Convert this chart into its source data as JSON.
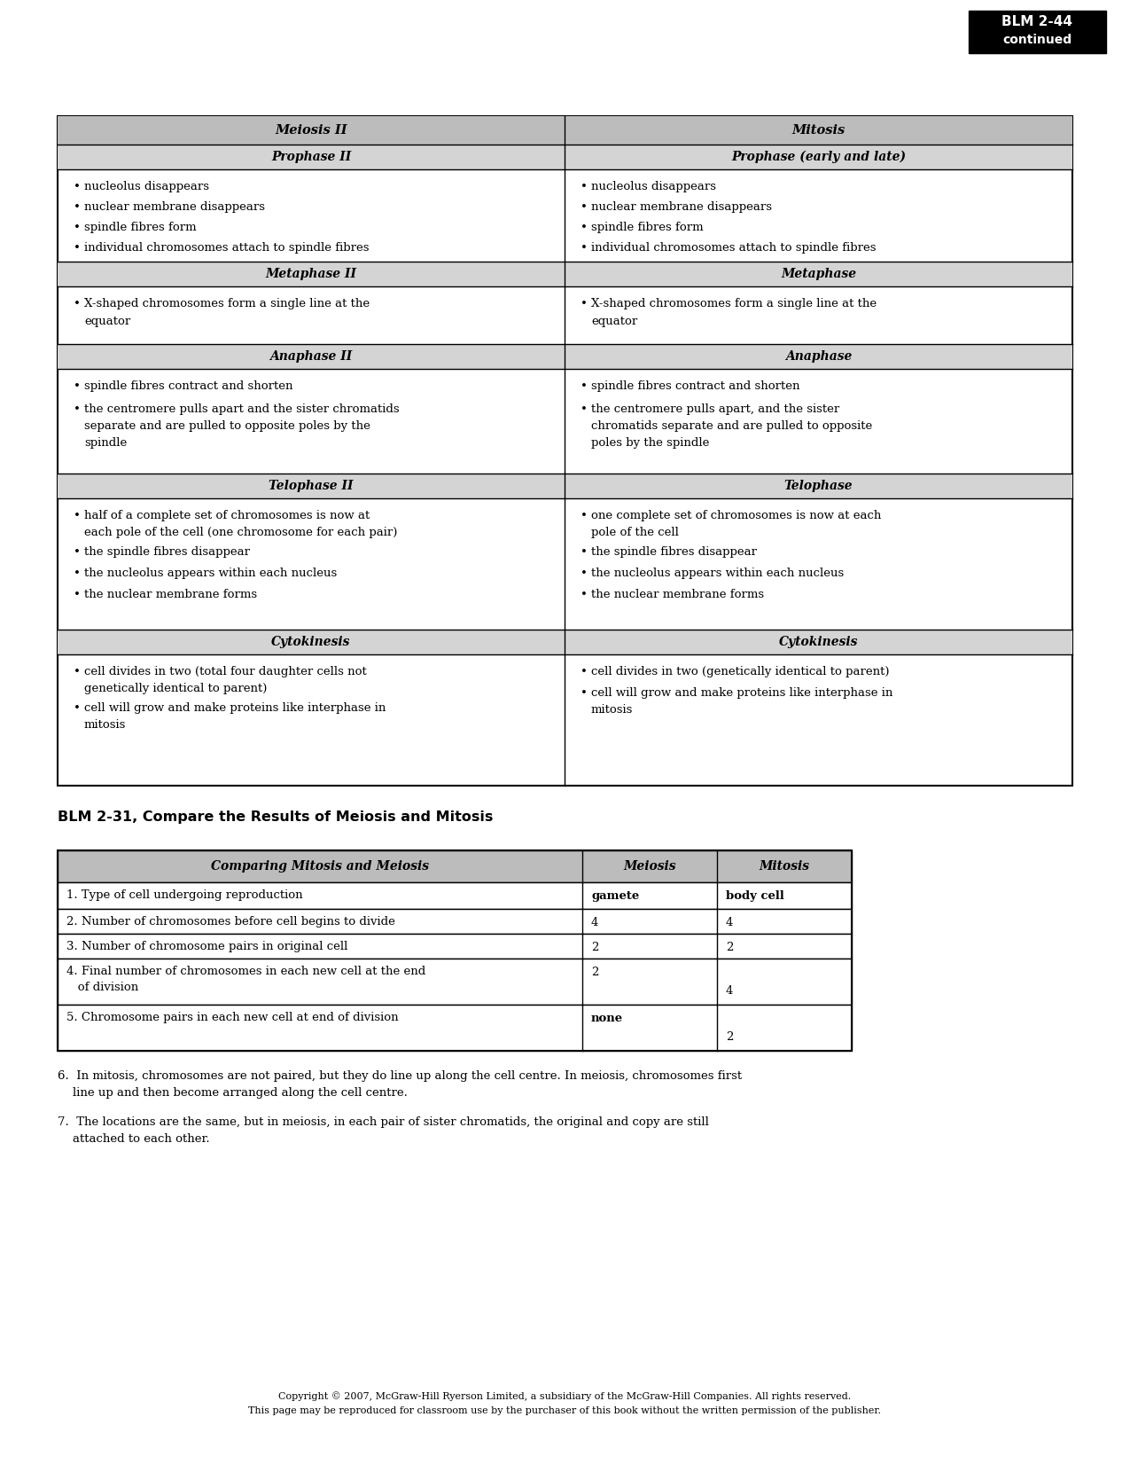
{
  "blm_label_line1": "BLM 2-44",
  "blm_label_line2": "continued",
  "top_table_headers": [
    "Meiosis II",
    "Mitosis"
  ],
  "prophase_subheaders": [
    "Prophase II",
    "Prophase (early and late)"
  ],
  "prophase_bullets": [
    "nucleolus disappears",
    "nuclear membrane disappears",
    "spindle fibres form",
    "individual chromosomes attach to spindle fibres"
  ],
  "metaphase_subheaders": [
    "Metaphase II",
    "Metaphase"
  ],
  "metaphase_bullet": "X-shaped chromosomes form a single line at the\nequator",
  "anaphase_subheaders": [
    "Anaphase II",
    "Anaphase"
  ],
  "anaphase_left_bullets": [
    "spindle fibres contract and shorten",
    "the centromere pulls apart and the sister chromatids\nseparate and are pulled to opposite poles by the\nspindle"
  ],
  "anaphase_right_bullets": [
    "spindle fibres contract and shorten",
    "the centromere pulls apart, and the sister\nchromatids separate and are pulled to opposite\npoles by the spindle"
  ],
  "telophase_subheaders": [
    "Telophase II",
    "Telophase"
  ],
  "telophase_left_bullets": [
    "half of a complete set of chromosomes is now at\neach pole of the cell (one chromosome for each pair)",
    "the spindle fibres disappear",
    "the nucleolus appears within each nucleus",
    "the nuclear membrane forms"
  ],
  "telophase_right_bullets": [
    "one complete set of chromosomes is now at each\npole of the cell",
    "the spindle fibres disappear",
    "the nucleolus appears within each nucleus",
    "the nuclear membrane forms"
  ],
  "cytokinesis_subheaders": [
    "Cytokinesis",
    "Cytokinesis"
  ],
  "cytokinesis_left_bullets": [
    "cell divides in two (total four daughter cells not\ngenetically identical to parent)",
    "cell will grow and make proteins like interphase in\nmitosis"
  ],
  "cytokinesis_right_bullets": [
    "cell divides in two (genetically identical to parent)",
    "cell will grow and make proteins like interphase in\nmitosis"
  ],
  "section2_title": "BLM 2-31, Compare the Results of Meiosis and Mitosis",
  "compare_headers": [
    "Comparing Mitosis and Meiosis",
    "Meiosis",
    "Mitosis"
  ],
  "compare_row1_q": "1. Type of cell undergoing reproduction",
  "compare_row1_m": "gamete",
  "compare_row1_mt": "body cell",
  "compare_row2_q": "2. Number of chromosomes before cell begins to divide",
  "compare_row2_m": "4",
  "compare_row2_mt": "4",
  "compare_row3_q": "3. Number of chromosome pairs in original cell",
  "compare_row3_m": "2",
  "compare_row3_mt": "2",
  "compare_row4_q": "4. Final number of chromosomes in each new cell at the end\n   of division",
  "compare_row4_m": "2",
  "compare_row4_mt": "4",
  "compare_row5_q": "5. Chromosome pairs in each new cell at end of division",
  "compare_row5_m": "none",
  "compare_row5_mt": "2",
  "item6": "6.  In mitosis, chromosomes are not paired, but they do line up along the cell centre. In meiosis, chromosomes first\n    line up and then become arranged along the cell centre.",
  "item7": "7.  The locations are the same, but in meiosis, in each pair of sister chromatids, the original and copy are still\n    attached to each other.",
  "footer_line1": "Copyright © 2007, McGraw-Hill Ryerson Limited, a subsidiary of the McGraw-Hill Companies. All rights reserved.",
  "footer_line2": "This page may be reproduced for classroom use by the purchaser of this book without the written permission of the publisher.",
  "bg_color": "#ffffff",
  "header_gray": "#bcbcbc",
  "subheader_gray": "#d4d4d4",
  "border_color": "#000000"
}
